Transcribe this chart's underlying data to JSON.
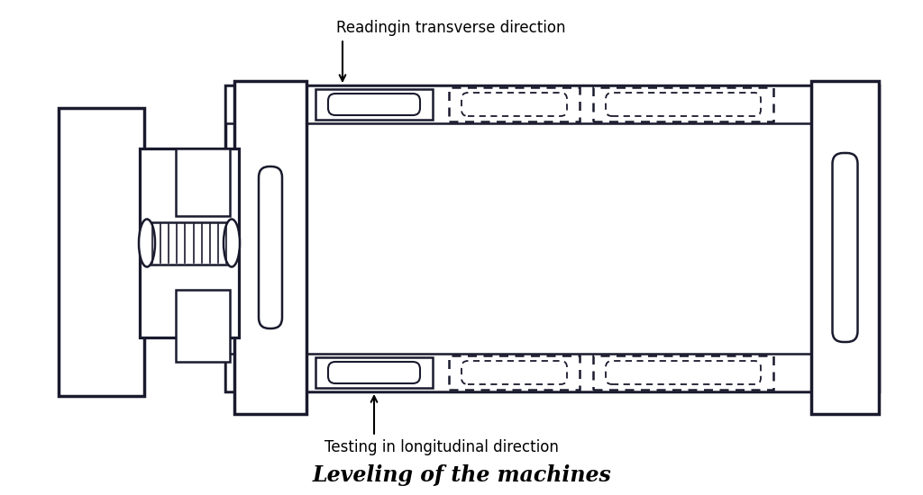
{
  "title": "Leveling of the machines",
  "label_top": "Readingin transverse direction",
  "label_bottom": "Testing in longitudinal direction",
  "bg_color": "#ffffff",
  "line_color": "#1a1a2e",
  "lw": 1.8
}
